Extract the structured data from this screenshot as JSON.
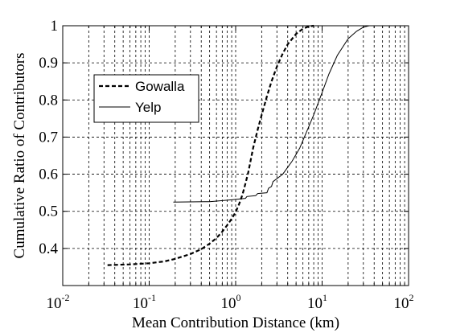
{
  "chart_data": {
    "type": "line",
    "title": "",
    "xlabel": "Mean Contribution Distance (km)",
    "ylabel": "Cumulative Ratio of Contributors",
    "x_scale": "log",
    "xlim": [
      0.01,
      100
    ],
    "ylim": [
      0.3,
      1.0
    ],
    "x_ticks": [
      0.01,
      0.1,
      1,
      10,
      100
    ],
    "x_tick_labels": [
      {
        "base": "10",
        "exp": "-2"
      },
      {
        "base": "10",
        "exp": "-1"
      },
      {
        "base": "10",
        "exp": "0"
      },
      {
        "base": "10",
        "exp": "1"
      },
      {
        "base": "10",
        "exp": "2"
      }
    ],
    "y_ticks": [
      0.4,
      0.5,
      0.6,
      0.7,
      0.8,
      0.9,
      1.0
    ],
    "y_tick_labels": [
      "0.4",
      "0.5",
      "0.6",
      "0.7",
      "0.8",
      "0.9",
      "1"
    ],
    "grid": true,
    "legend_position": "upper-left",
    "series": [
      {
        "name": "Gowalla",
        "style": "dashed",
        "points": [
          [
            0.033,
            0.355
          ],
          [
            0.06,
            0.357
          ],
          [
            0.1,
            0.36
          ],
          [
            0.15,
            0.365
          ],
          [
            0.2,
            0.372
          ],
          [
            0.3,
            0.385
          ],
          [
            0.4,
            0.398
          ],
          [
            0.5,
            0.413
          ],
          [
            0.6,
            0.428
          ],
          [
            0.7,
            0.445
          ],
          [
            0.8,
            0.463
          ],
          [
            0.9,
            0.48
          ],
          [
            1.0,
            0.498
          ],
          [
            1.1,
            0.52
          ],
          [
            1.2,
            0.545
          ],
          [
            1.3,
            0.575
          ],
          [
            1.4,
            0.605
          ],
          [
            1.5,
            0.64
          ],
          [
            1.6,
            0.672
          ],
          [
            1.8,
            0.72
          ],
          [
            2.0,
            0.76
          ],
          [
            2.3,
            0.81
          ],
          [
            2.6,
            0.85
          ],
          [
            3.0,
            0.89
          ],
          [
            3.5,
            0.925
          ],
          [
            4.0,
            0.95
          ],
          [
            5.0,
            0.978
          ],
          [
            6.0,
            0.992
          ],
          [
            7.0,
            0.998
          ],
          [
            8.0,
            1.0
          ]
        ]
      },
      {
        "name": "Yelp",
        "style": "solid",
        "points": [
          [
            0.19,
            0.525
          ],
          [
            0.5,
            0.526
          ],
          [
            0.8,
            0.53
          ],
          [
            1.0,
            0.532
          ],
          [
            1.3,
            0.535
          ],
          [
            1.35,
            0.54
          ],
          [
            1.7,
            0.542
          ],
          [
            1.8,
            0.548
          ],
          [
            2.3,
            0.55
          ],
          [
            2.4,
            0.562
          ],
          [
            2.6,
            0.567
          ],
          [
            2.7,
            0.58
          ],
          [
            3.5,
            0.6
          ],
          [
            4.5,
            0.635
          ],
          [
            5.5,
            0.67
          ],
          [
            6.5,
            0.71
          ],
          [
            8.0,
            0.76
          ],
          [
            10.0,
            0.82
          ],
          [
            12.0,
            0.87
          ],
          [
            15.0,
            0.92
          ],
          [
            20.0,
            0.965
          ],
          [
            25.0,
            0.985
          ],
          [
            30.0,
            0.996
          ],
          [
            35.0,
            1.0
          ],
          [
            40.0,
            1.0
          ]
        ]
      }
    ]
  }
}
